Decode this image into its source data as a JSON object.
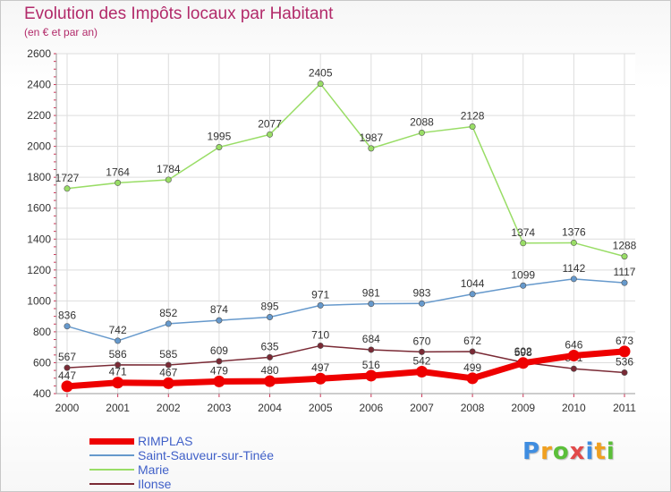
{
  "header": {
    "title": "Evolution des Impôts locaux par Habitant",
    "subtitle": "(en € et par an)"
  },
  "logo": {
    "text": "Proxiti",
    "letters": [
      "P",
      "r",
      "o",
      "x",
      "i",
      "t",
      "i"
    ]
  },
  "chart_data": {
    "type": "line",
    "title": "Evolution des Impôts locaux par Habitant",
    "subtitle": "(en € et par an)",
    "xlabel": "",
    "ylabel": "",
    "categories": [
      "2000",
      "2001",
      "2002",
      "2003",
      "2004",
      "2005",
      "2006",
      "2007",
      "2008",
      "2009",
      "2010",
      "2011"
    ],
    "ylim": [
      400,
      2600
    ],
    "yticks": [
      400,
      600,
      800,
      1000,
      1200,
      1400,
      1600,
      1800,
      2000,
      2200,
      2400,
      2600
    ],
    "grid": true,
    "legend_position": "bottom-left",
    "series": [
      {
        "name": "RIMPLAS",
        "color": "#ee0000",
        "values": [
          447,
          471,
          467,
          479,
          480,
          497,
          516,
          542,
          499,
          598,
          646,
          673
        ]
      },
      {
        "name": "Saint-Sauveur-sur-Tinée",
        "color": "#6699cc",
        "values": [
          836,
          742,
          852,
          874,
          895,
          971,
          981,
          983,
          1044,
          1099,
          1142,
          1117
        ]
      },
      {
        "name": "Marie",
        "color": "#99dd66",
        "values": [
          1727,
          1764,
          1784,
          1995,
          2077,
          2405,
          1987,
          2088,
          2128,
          1374,
          1376,
          1288
        ]
      },
      {
        "name": "Ilonse",
        "color": "#7a2a35",
        "values": [
          567,
          586,
          585,
          609,
          635,
          710,
          684,
          670,
          672,
          602,
          561,
          536
        ]
      }
    ]
  }
}
